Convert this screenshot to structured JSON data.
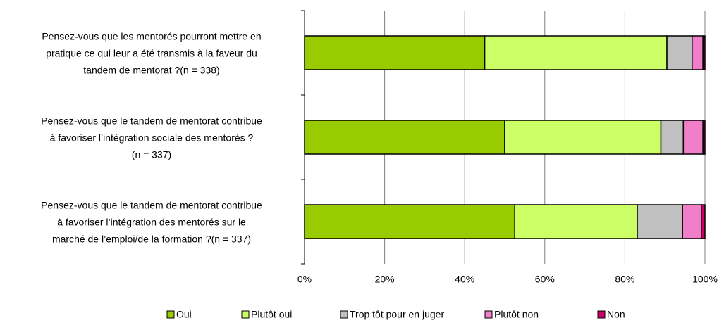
{
  "chart_data": {
    "type": "stacked_barh",
    "categories": [
      [
        "Pensez-vous que les mentorés pourront mettre en",
        "pratique ce qui leur a été transmis à la faveur du",
        "tandem de mentorat ?(n = 338)"
      ],
      [
        "Pensez-vous que le tandem de mentorat contribue",
        "à favoriser l’intégration sociale des mentorés ?",
        "(n = 337)"
      ],
      [
        "Pensez-vous que le tandem de mentorat contribue",
        "à favoriser l’intégration des mentorés sur le",
        "marché de l’emploi/de la formation ?(n = 337)"
      ]
    ],
    "series": [
      {
        "name": "Oui",
        "color": "#99cc00",
        "values": [
          45,
          50,
          52.5
        ]
      },
      {
        "name": "Plutôt oui",
        "color": "#ccff66",
        "values": [
          45.5,
          39,
          30.6
        ]
      },
      {
        "name": "Trop tôt pour en juger",
        "color": "#c0c0c0",
        "values": [
          6.3,
          5.6,
          11.3
        ]
      },
      {
        "name": "Plutôt non",
        "color": "#f07ec8",
        "values": [
          2.7,
          4.9,
          4.7
        ]
      },
      {
        "name": "Non",
        "color": "#cc0066",
        "values": [
          0.5,
          0.5,
          0.9
        ]
      }
    ],
    "xlim": [
      0,
      100
    ],
    "xticks": [
      {
        "value": 0,
        "label": "0%"
      },
      {
        "value": 20,
        "label": "20%"
      },
      {
        "value": 40,
        "label": "40%"
      },
      {
        "value": 60,
        "label": "60%"
      },
      {
        "value": 80,
        "label": "80%"
      },
      {
        "value": 100,
        "label": "100%"
      }
    ],
    "grid": true,
    "legend": "bottom"
  }
}
